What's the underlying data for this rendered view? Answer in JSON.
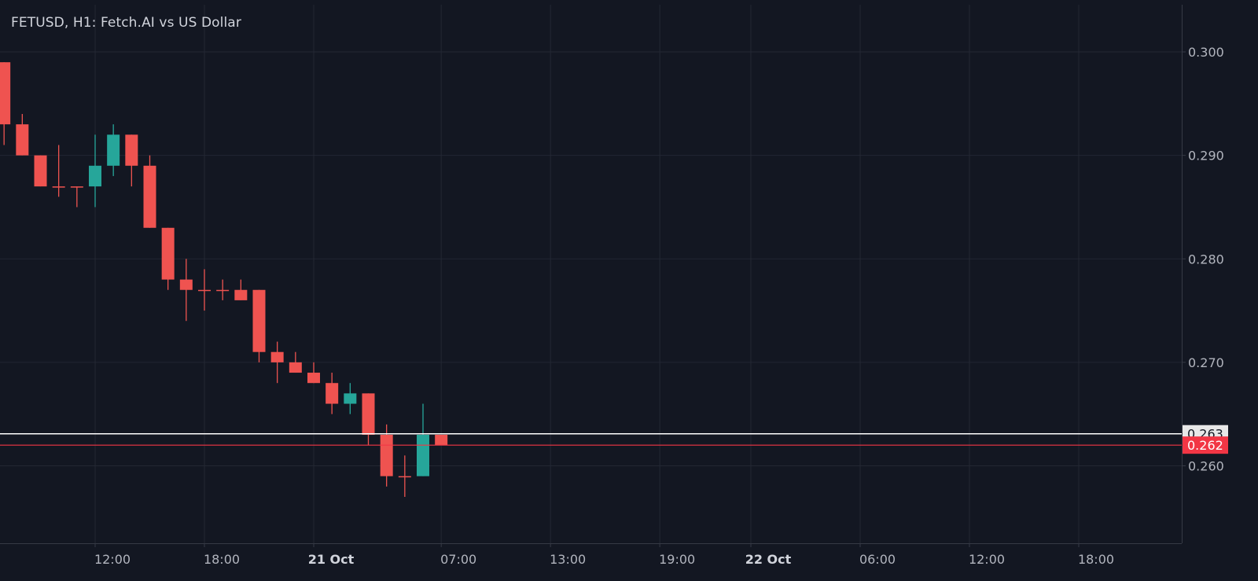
{
  "colors": {
    "background": "#131722",
    "grid": "#232733",
    "axis": "#363a45",
    "text": "#b2b5be",
    "up": "#26a69a",
    "down": "#ef5350",
    "last_line": "#ffffff",
    "current_line": "#f23645"
  },
  "chart_data": {
    "type": "candlestick",
    "title": "FETUSD, H1: Fetch.AI vs US Dollar",
    "symbol": "FETUSD",
    "interval": "H1",
    "ylim": [
      0.251,
      0.304
    ],
    "y_ticks": [
      0.26,
      0.27,
      0.28,
      0.29,
      0.3
    ],
    "x_ticks": [
      {
        "label": "12:00",
        "hour": 12,
        "bold": false
      },
      {
        "label": "18:00",
        "hour": 18,
        "bold": false
      },
      {
        "label": "21 Oct",
        "hour": 24,
        "bold": true
      },
      {
        "label": "07:00",
        "hour": 31,
        "bold": false
      },
      {
        "label": "13:00",
        "hour": 37,
        "bold": false
      },
      {
        "label": "19:00",
        "hour": 43,
        "bold": false
      },
      {
        "label": "22 Oct",
        "hour": 48,
        "bold": true
      },
      {
        "label": "06:00",
        "hour": 54,
        "bold": false
      },
      {
        "label": "12:00",
        "hour": 60,
        "bold": false
      },
      {
        "label": "18:00",
        "hour": 66,
        "bold": false
      }
    ],
    "candles": [
      {
        "hour": 7,
        "open": 0.299,
        "high": 0.299,
        "low": 0.291,
        "close": 0.293
      },
      {
        "hour": 8,
        "open": 0.293,
        "high": 0.294,
        "low": 0.29,
        "close": 0.29
      },
      {
        "hour": 9,
        "open": 0.29,
        "high": 0.29,
        "low": 0.287,
        "close": 0.287
      },
      {
        "hour": 10,
        "open": 0.287,
        "high": 0.291,
        "low": 0.286,
        "close": 0.2869
      },
      {
        "hour": 11,
        "open": 0.287,
        "high": 0.287,
        "low": 0.285,
        "close": 0.2869
      },
      {
        "hour": 12,
        "open": 0.287,
        "high": 0.292,
        "low": 0.285,
        "close": 0.289
      },
      {
        "hour": 13,
        "open": 0.289,
        "high": 0.293,
        "low": 0.288,
        "close": 0.292
      },
      {
        "hour": 14,
        "open": 0.292,
        "high": 0.292,
        "low": 0.287,
        "close": 0.289
      },
      {
        "hour": 15,
        "open": 0.289,
        "high": 0.29,
        "low": 0.283,
        "close": 0.283
      },
      {
        "hour": 16,
        "open": 0.283,
        "high": 0.283,
        "low": 0.277,
        "close": 0.278
      },
      {
        "hour": 17,
        "open": 0.278,
        "high": 0.28,
        "low": 0.274,
        "close": 0.277
      },
      {
        "hour": 18,
        "open": 0.277,
        "high": 0.279,
        "low": 0.275,
        "close": 0.2769
      },
      {
        "hour": 19,
        "open": 0.277,
        "high": 0.278,
        "low": 0.276,
        "close": 0.2769
      },
      {
        "hour": 20,
        "open": 0.277,
        "high": 0.278,
        "low": 0.276,
        "close": 0.276
      },
      {
        "hour": 21,
        "open": 0.277,
        "high": 0.277,
        "low": 0.27,
        "close": 0.271
      },
      {
        "hour": 22,
        "open": 0.271,
        "high": 0.272,
        "low": 0.268,
        "close": 0.27
      },
      {
        "hour": 23,
        "open": 0.27,
        "high": 0.271,
        "low": 0.269,
        "close": 0.269
      },
      {
        "hour": 24,
        "open": 0.269,
        "high": 0.27,
        "low": 0.268,
        "close": 0.268
      },
      {
        "hour": 25,
        "open": 0.268,
        "high": 0.269,
        "low": 0.265,
        "close": 0.266
      },
      {
        "hour": 26,
        "open": 0.266,
        "high": 0.268,
        "low": 0.265,
        "close": 0.267
      },
      {
        "hour": 27,
        "open": 0.267,
        "high": 0.267,
        "low": 0.262,
        "close": 0.263
      },
      {
        "hour": 28,
        "open": 0.263,
        "high": 0.264,
        "low": 0.258,
        "close": 0.259
      },
      {
        "hour": 29,
        "open": 0.259,
        "high": 0.261,
        "low": 0.257,
        "close": 0.2589
      },
      {
        "hour": 30,
        "open": 0.259,
        "high": 0.266,
        "low": 0.259,
        "close": 0.263
      },
      {
        "hour": 31,
        "open": 0.263,
        "high": 0.263,
        "low": 0.262,
        "close": 0.262
      }
    ],
    "price_lines": [
      {
        "name": "last",
        "value": 0.2631,
        "label": "0.263"
      },
      {
        "name": "current",
        "value": 0.262,
        "label": "0.262"
      }
    ]
  }
}
